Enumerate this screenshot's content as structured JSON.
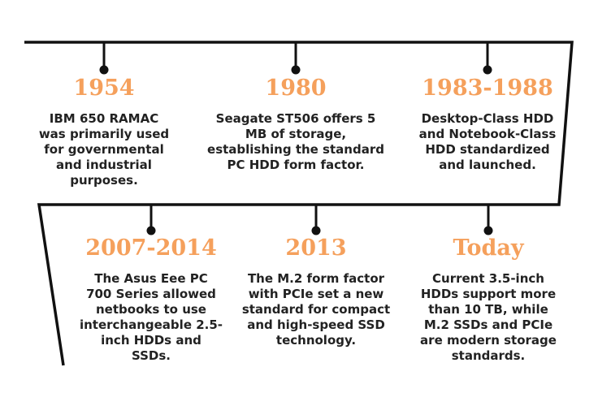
{
  "colors": {
    "year": "#f5a05c",
    "text": "#222222",
    "line": "#111111"
  },
  "events": [
    {
      "year": "1954",
      "text": "IBM 650 RAMAC\nwas primarily used\nfor governmental\nand industrial\npurposes."
    },
    {
      "year": "1980",
      "text": "Seagate ST506 offers 5\nMB of storage,\nestablishing the standard\nPC HDD form factor."
    },
    {
      "year": "1983-1988",
      "text": "Desktop-Class HDD\nand Notebook-Class\nHDD standardized\nand launched."
    },
    {
      "year": "2007-2014",
      "text": "The Asus Eee PC\n700 Series allowed\nnetbooks to use\ninterchangeable 2.5-\ninch HDDs and\nSSDs."
    },
    {
      "year": "2013",
      "text": "The M.2 form factor\nwith PCIe set a new\nstandard for compact\nand high-speed SSD\ntechnology."
    },
    {
      "year": "Today",
      "text": "Current 3.5-inch\nHDDs support more\nthan 10 TB, while\nM.2 SSDs and PCIe\nare modern storage\nstandards."
    }
  ]
}
